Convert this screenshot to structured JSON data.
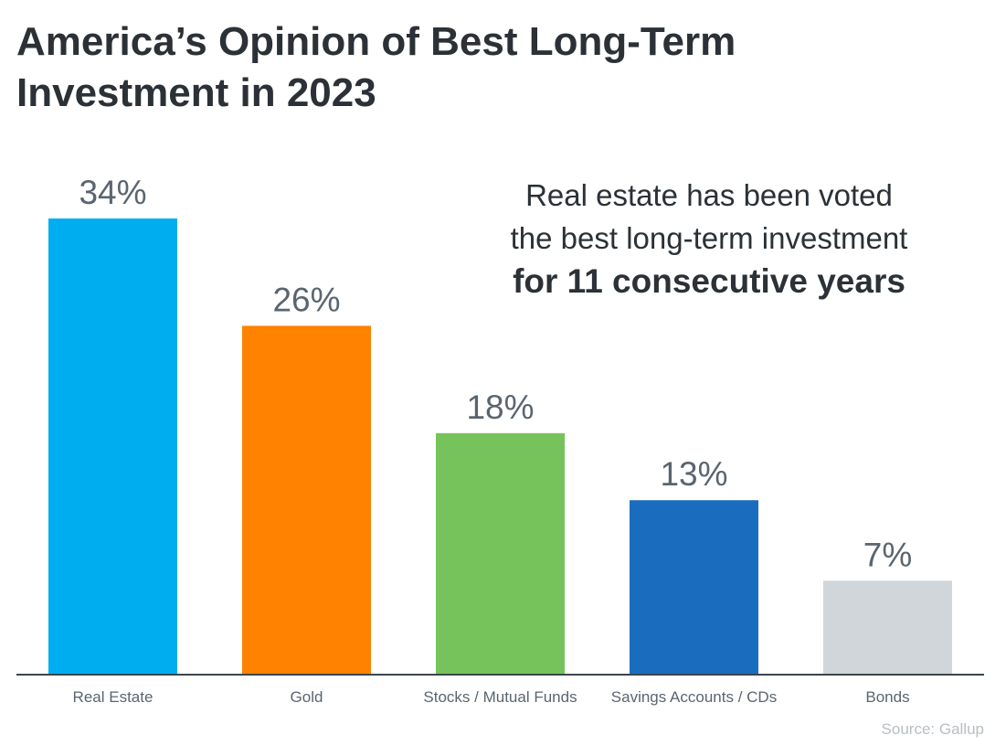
{
  "title_line1": "America’s Opinion of Best Long-Term",
  "title_line2": "Investment in 2023",
  "callout": {
    "line1": "Real estate has been voted",
    "line2": "the best long-term investment",
    "line3": "for 11 consecutive years"
  },
  "source": "Source: Gallup",
  "chart_data": {
    "type": "bar",
    "title": "America’s Opinion of Best Long-Term Investment in 2023",
    "categories": [
      "Real Estate",
      "Gold",
      "Stocks / Mutual Funds",
      "Savings Accounts / CDs",
      "Bonds"
    ],
    "values": [
      34,
      26,
      18,
      13,
      7
    ],
    "value_labels": [
      "34%",
      "26%",
      "18%",
      "13%",
      "7%"
    ],
    "colors": [
      "#00aeef",
      "#ff8200",
      "#77c35b",
      "#1a6dbe",
      "#d0d6d9"
    ],
    "xlabel": "",
    "ylabel": "",
    "ylim": [
      0,
      34
    ],
    "grid": false
  }
}
